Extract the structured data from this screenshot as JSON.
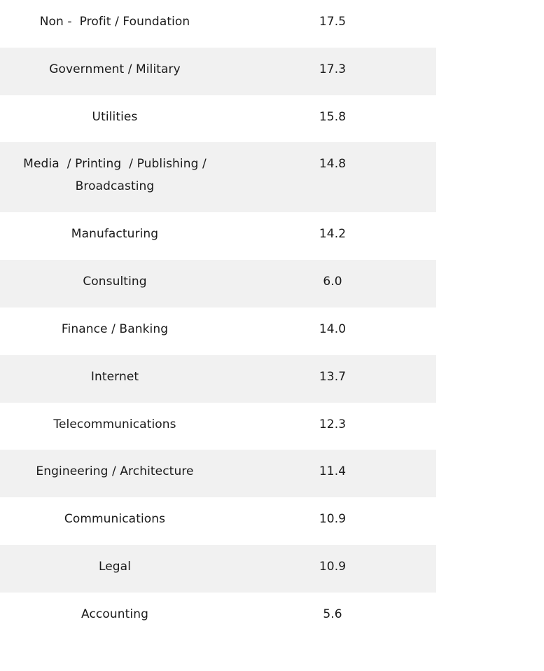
{
  "rows": [
    {
      "label": "Non -  Profit / Foundation",
      "value": "17.5"
    },
    {
      "label": "Government / Military",
      "value": "17.3"
    },
    {
      "label": "Utilities",
      "value": "15.8"
    },
    {
      "label": "Media  / Printing  / Publishing /\nBroadcasting",
      "value": "14.8"
    },
    {
      "label": "Manufacturing",
      "value": "14.2"
    },
    {
      "label": "Consulting",
      "value": "6.0"
    },
    {
      "label": "Finance / Banking",
      "value": "14.0"
    },
    {
      "label": "Internet",
      "value": "13.7"
    },
    {
      "label": "Telecommunications",
      "value": "12.3"
    },
    {
      "label": "Engineering / Architecture",
      "value": "11.4"
    },
    {
      "label": "Communications",
      "value": "10.9"
    },
    {
      "label": "Legal",
      "value": "10.9"
    },
    {
      "label": "Accounting",
      "value": "5.6"
    }
  ],
  "colors": {
    "shade": "#f1f1f1",
    "text": "#1a1a1a"
  }
}
